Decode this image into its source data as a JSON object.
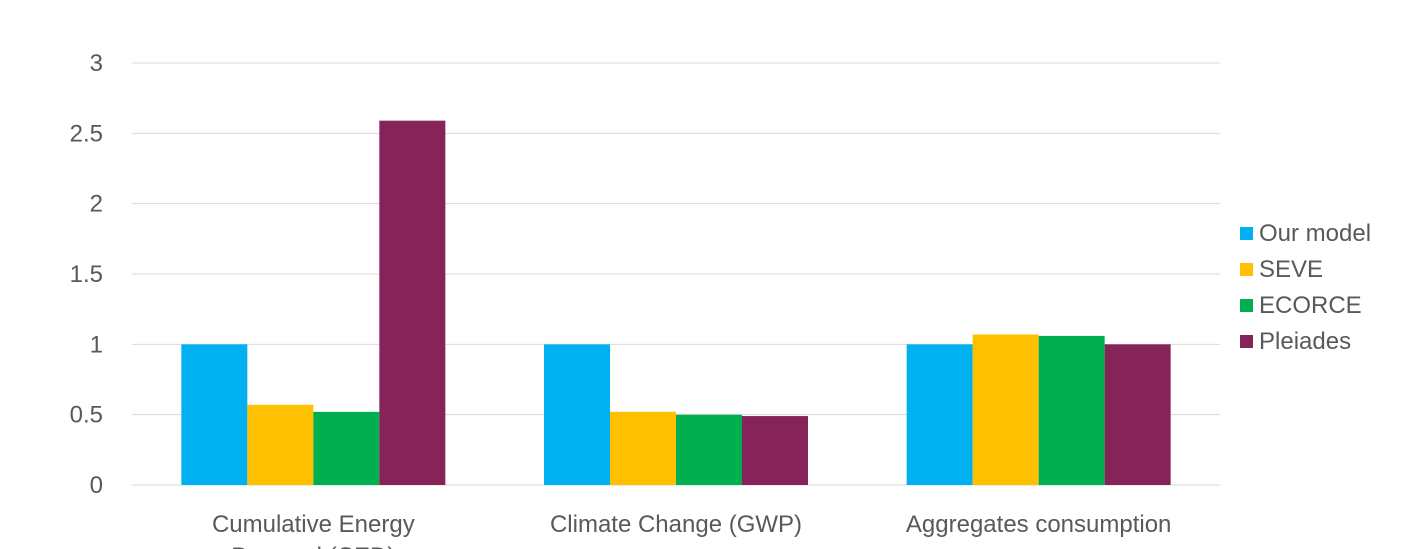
{
  "chart_data": {
    "type": "bar",
    "categories": [
      [
        "Cumulative Energy",
        "Demand (CED)"
      ],
      [
        "Climate Change (GWP)"
      ],
      [
        "Aggregates consumption"
      ]
    ],
    "series": [
      {
        "name": "Our model",
        "color": "#00b0f0",
        "values": [
          1.0,
          1.0,
          1.0
        ]
      },
      {
        "name": "SEVE",
        "color": "#ffc000",
        "values": [
          0.57,
          0.52,
          1.07
        ]
      },
      {
        "name": "ECORCE",
        "color": "#00b050",
        "values": [
          0.52,
          0.5,
          1.06
        ]
      },
      {
        "name": "Pleiades",
        "color": "#862358",
        "values": [
          2.59,
          0.49,
          1.0
        ]
      }
    ],
    "ylim": [
      0,
      3
    ],
    "yticks": [
      "0",
      "0.5",
      "1",
      "1.5",
      "2",
      "2.5",
      "3"
    ],
    "ytick_values": [
      0,
      0.5,
      1,
      1.5,
      2,
      2.5,
      3
    ],
    "title": "",
    "xlabel": "",
    "ylabel": "",
    "grid": true,
    "legend_position": "right"
  }
}
